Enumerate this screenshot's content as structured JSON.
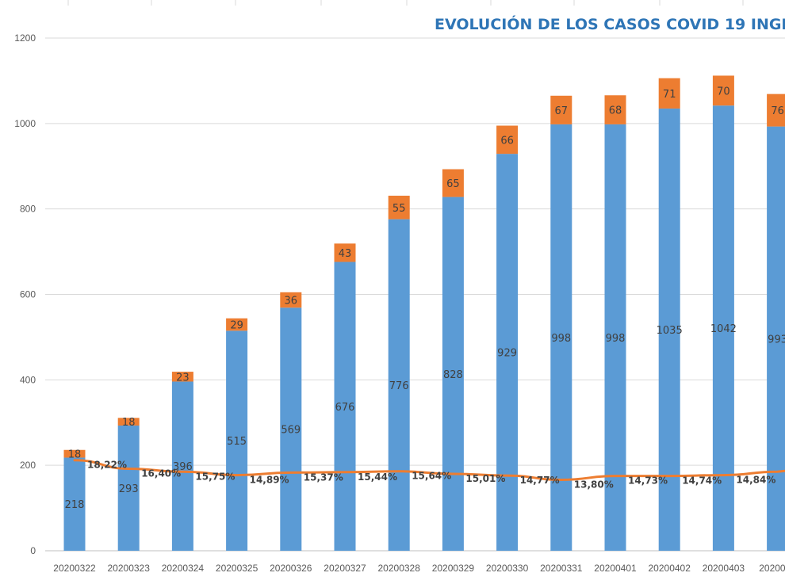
{
  "chart_data": {
    "type": "bar",
    "title": "EVOLUCIÓN DE LOS CASOS COVID 19 INGR",
    "categories": [
      "20200322",
      "20200323",
      "20200324",
      "20200325",
      "20200326",
      "20200327",
      "20200328",
      "20200329",
      "20200330",
      "20200331",
      "20200401",
      "20200402",
      "20200403",
      "2020040"
    ],
    "tick_labels": [
      "20200322",
      "20200323",
      "20200324",
      "20200325",
      "20200326",
      "20200327",
      "20200328",
      "20200329",
      "20200330",
      "20200331",
      "20200401",
      "20200402",
      "20200403",
      "2020040"
    ],
    "ylim": [
      0,
      1200
    ],
    "yticks": [
      0,
      200,
      400,
      600,
      800,
      1000,
      1200
    ],
    "xlabel": "",
    "ylabel": "",
    "series": [
      {
        "name": "base",
        "kind": "bar",
        "color": "#5b9bd5",
        "values": [
          218,
          293,
          396,
          515,
          569,
          676,
          776,
          828,
          929,
          998,
          998,
          1035,
          1042,
          993
        ],
        "labels": [
          "218",
          "293",
          "396",
          "515",
          "569",
          "676",
          "776",
          "828",
          "929",
          "998",
          "998",
          "1035",
          "1042",
          "993"
        ]
      },
      {
        "name": "top",
        "kind": "bar",
        "color": "#ed7d31",
        "values": [
          18,
          18,
          23,
          29,
          36,
          43,
          55,
          65,
          66,
          67,
          68,
          71,
          70,
          76
        ],
        "labels": [
          "18",
          "18",
          "23",
          "29",
          "36",
          "43",
          "55",
          "65",
          "66",
          "67",
          "68",
          "71",
          "70",
          "76"
        ]
      },
      {
        "name": "percentage",
        "kind": "line",
        "color": "#ed7d31",
        "values": [
          212,
          192,
          185,
          177,
          183,
          184,
          186,
          180,
          176,
          166,
          175,
          175,
          177,
          185
        ],
        "labels": [
          "18,22%",
          "16,40%",
          "15,75%",
          "14,89%",
          "15,37%",
          "15,44%",
          "15,64%",
          "15,01%",
          "14,77%",
          "13,80%",
          "14,73%",
          "14,74%",
          "14,84%",
          ""
        ]
      }
    ]
  }
}
